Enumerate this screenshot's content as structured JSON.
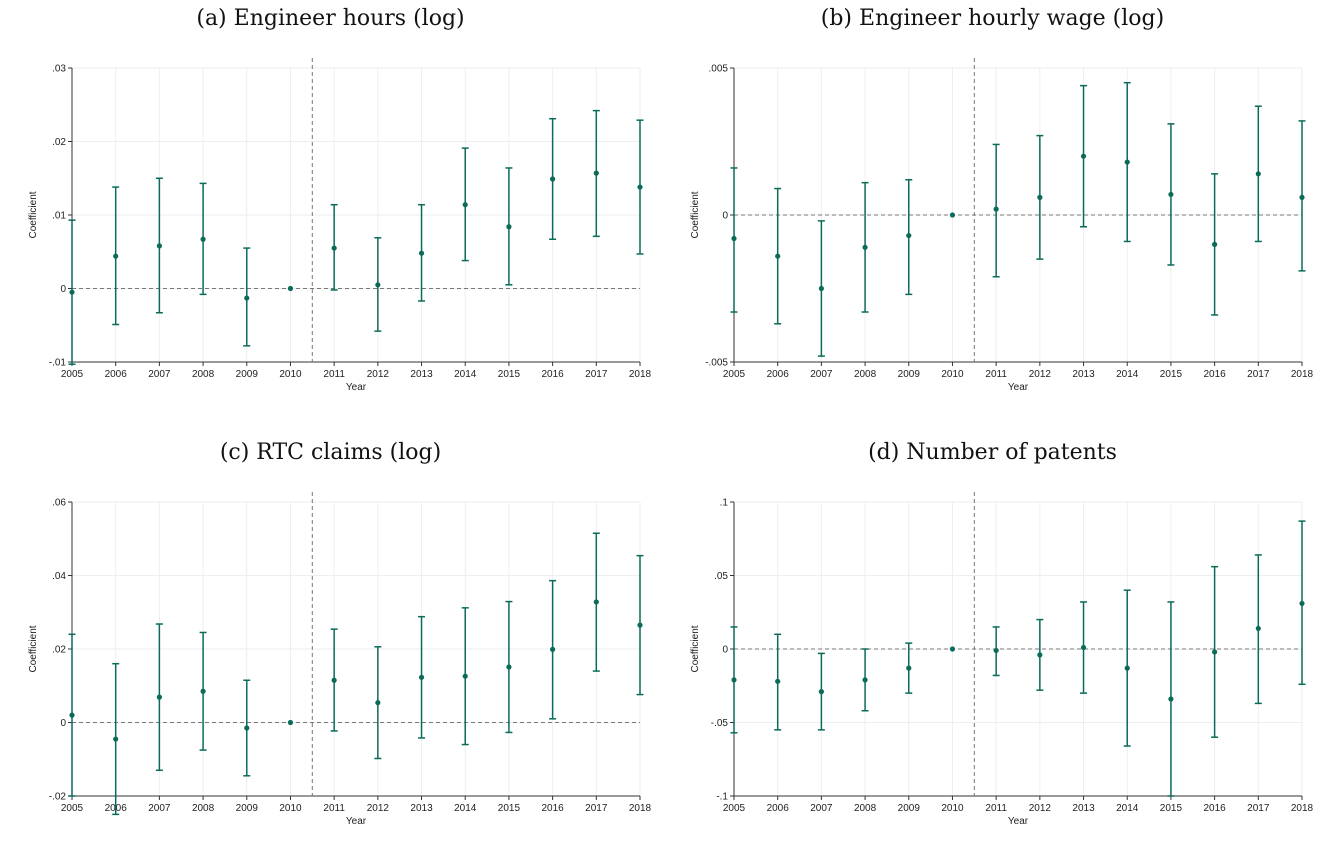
{
  "chart_data": [
    {
      "type": "scatter",
      "panel_title": "(a)  Engineer hours (log)",
      "xlabel": "Year",
      "ylabel": "Coefficient",
      "xlim": [
        2005,
        2018
      ],
      "ylim": [
        -0.01,
        0.03
      ],
      "yticks": [
        -0.01,
        0,
        0.01,
        0.02,
        0.03
      ],
      "ytick_labels": [
        "-.01",
        "0",
        ".01",
        ".02",
        ".03"
      ],
      "grid": true,
      "reference_vline": 2010.5,
      "reference_hline": 0,
      "color": "#0b6b5a",
      "x": [
        2005,
        2006,
        2007,
        2008,
        2009,
        2010,
        2011,
        2012,
        2013,
        2014,
        2015,
        2016,
        2017,
        2018
      ],
      "y": [
        -0.0005,
        0.0044,
        0.0058,
        0.0067,
        -0.0013,
        0.0,
        0.0055,
        0.0005,
        0.0048,
        0.0114,
        0.0084,
        0.0149,
        0.0157,
        0.0138
      ],
      "ci_low": [
        -0.0103,
        -0.0049,
        -0.0033,
        -0.0008,
        -0.0078,
        0.0,
        -0.0002,
        -0.0058,
        -0.0017,
        0.0038,
        0.0005,
        0.0067,
        0.0071,
        0.0047
      ],
      "ci_high": [
        0.0093,
        0.0138,
        0.015,
        0.0143,
        0.0055,
        0.0,
        0.0114,
        0.0069,
        0.0114,
        0.0191,
        0.0164,
        0.0231,
        0.0242,
        0.0229
      ]
    },
    {
      "type": "scatter",
      "panel_title": "(b)  Engineer hourly wage (log)",
      "xlabel": "Year",
      "ylabel": "Coefficient",
      "xlim": [
        2005,
        2018
      ],
      "ylim": [
        -0.005,
        0.005
      ],
      "yticks": [
        -0.005,
        0,
        0.005
      ],
      "ytick_labels": [
        "-.005",
        "0",
        ".005"
      ],
      "grid": true,
      "reference_vline": 2010.5,
      "reference_hline": 0,
      "color": "#0b6b5a",
      "x": [
        2005,
        2006,
        2007,
        2008,
        2009,
        2010,
        2011,
        2012,
        2013,
        2014,
        2015,
        2016,
        2017,
        2018
      ],
      "y": [
        -0.0008,
        -0.0014,
        -0.0025,
        -0.0011,
        -0.0007,
        0.0,
        0.0002,
        0.0006,
        0.002,
        0.0018,
        0.0007,
        -0.001,
        0.0014,
        0.0006
      ],
      "ci_low": [
        -0.0033,
        -0.0037,
        -0.0048,
        -0.0033,
        -0.0027,
        0.0,
        -0.0021,
        -0.0015,
        -0.0004,
        -0.0009,
        -0.0017,
        -0.0034,
        -0.0009,
        -0.0019
      ],
      "ci_high": [
        0.0016,
        0.0009,
        -0.0002,
        0.0011,
        0.0012,
        0.0,
        0.0024,
        0.0027,
        0.0044,
        0.0045,
        0.0031,
        0.0014,
        0.0037,
        0.0032
      ]
    },
    {
      "type": "scatter",
      "panel_title": "(c)  RTC claims (log)",
      "xlabel": "Year",
      "ylabel": "Coefficient",
      "xlim": [
        2005,
        2018
      ],
      "ylim": [
        -0.02,
        0.06
      ],
      "yticks": [
        -0.02,
        0,
        0.02,
        0.04,
        0.06
      ],
      "ytick_labels": [
        "-.02",
        "0",
        ".02",
        ".04",
        ".06"
      ],
      "grid": true,
      "reference_vline": 2010.5,
      "reference_hline": 0,
      "color": "#0b6b5a",
      "x": [
        2005,
        2006,
        2007,
        2008,
        2009,
        2010,
        2011,
        2012,
        2013,
        2014,
        2015,
        2016,
        2017,
        2018
      ],
      "y": [
        0.002,
        -0.0045,
        0.0069,
        0.0085,
        -0.0015,
        0.0,
        0.0115,
        0.0054,
        0.0123,
        0.0126,
        0.0151,
        0.0199,
        0.0328,
        0.0265
      ],
      "ci_low": [
        -0.02,
        -0.025,
        -0.013,
        -0.0075,
        -0.0145,
        0.0,
        -0.0023,
        -0.0098,
        -0.0042,
        -0.006,
        -0.0027,
        0.001,
        0.014,
        0.0076
      ],
      "ci_high": [
        0.024,
        0.016,
        0.0268,
        0.0245,
        0.0115,
        0.0,
        0.0254,
        0.0206,
        0.0288,
        0.0312,
        0.0329,
        0.0386,
        0.0515,
        0.0454
      ]
    },
    {
      "type": "scatter",
      "panel_title": "(d)  Number of patents",
      "xlabel": "Year",
      "ylabel": "Coefficient",
      "xlim": [
        2005,
        2018
      ],
      "ylim": [
        -0.1,
        0.1
      ],
      "yticks": [
        -0.1,
        -0.05,
        0,
        0.05,
        0.1
      ],
      "ytick_labels": [
        "-.1",
        "-.05",
        "0",
        ".05",
        ".1"
      ],
      "grid": true,
      "reference_vline": 2010.5,
      "reference_hline": 0,
      "color": "#0b6b5a",
      "x": [
        2005,
        2006,
        2007,
        2008,
        2009,
        2010,
        2011,
        2012,
        2013,
        2014,
        2015,
        2016,
        2017,
        2018
      ],
      "y": [
        -0.021,
        -0.022,
        -0.029,
        -0.021,
        -0.013,
        0.0,
        -0.001,
        -0.004,
        0.001,
        -0.013,
        -0.034,
        -0.002,
        0.014,
        0.031
      ],
      "ci_low": [
        -0.057,
        -0.055,
        -0.055,
        -0.042,
        -0.03,
        0.0,
        -0.018,
        -0.028,
        -0.03,
        -0.066,
        -0.1,
        -0.06,
        -0.037,
        -0.024
      ],
      "ci_high": [
        0.015,
        0.01,
        -0.003,
        0.0,
        0.004,
        0.0,
        0.015,
        0.02,
        0.032,
        0.04,
        0.032,
        0.056,
        0.064,
        0.087
      ]
    }
  ]
}
